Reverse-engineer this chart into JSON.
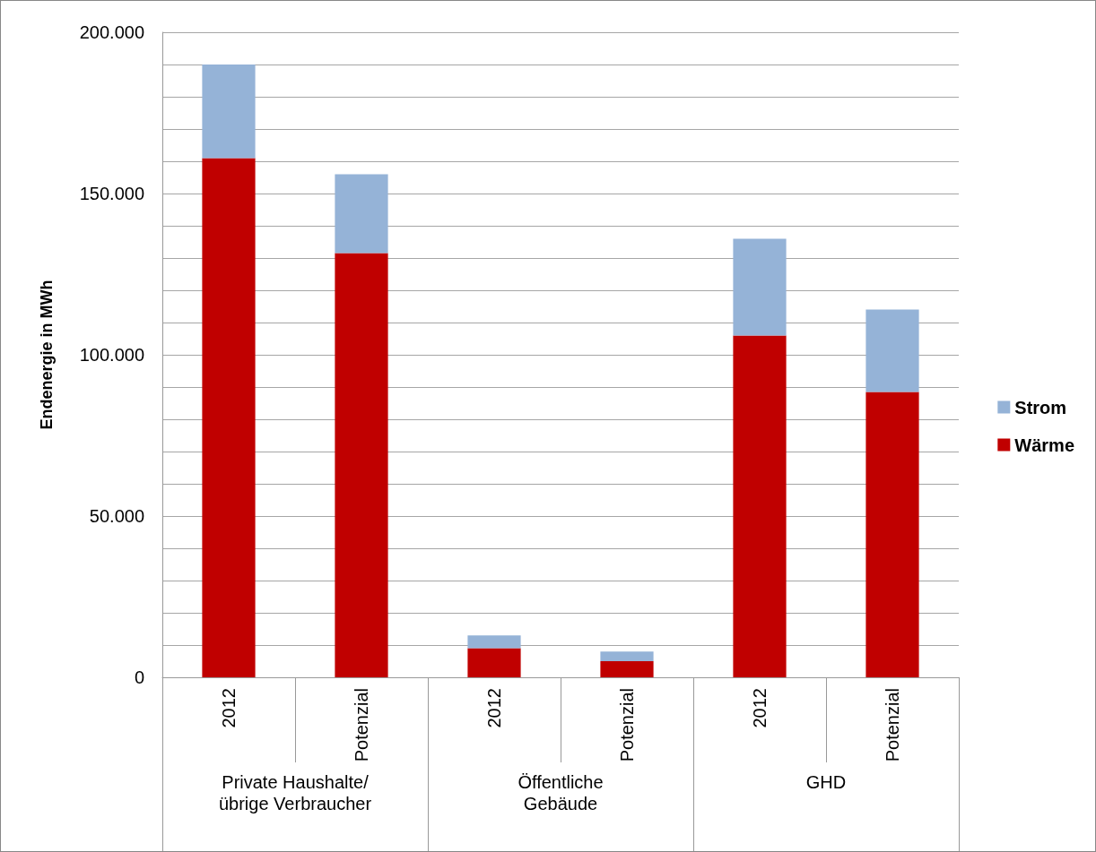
{
  "chart_data": {
    "type": "bar",
    "stacked": true,
    "ylabel": "Endenergie in MWh",
    "categories": [
      "2012",
      "Potenzial",
      "2012",
      "Potenzial",
      "2012",
      "Potenzial"
    ],
    "annotations": [
      "Private Haushalte/\nübrige Verbraucher",
      "Öffentliche\nGebäude",
      "GHD"
    ],
    "series": [
      {
        "name": "Wärme",
        "color": "#c00000",
        "values": [
          161000,
          131500,
          9000,
          5000,
          106000,
          88500
        ]
      },
      {
        "name": "Strom",
        "color": "#95b3d7",
        "values": [
          29000,
          24500,
          4000,
          3000,
          30000,
          25500
        ]
      }
    ],
    "ylim": [
      0,
      200000
    ],
    "yticks": [
      {
        "value": 0,
        "label": "0"
      },
      {
        "value": 10000,
        "label": null
      },
      {
        "value": 20000,
        "label": null
      },
      {
        "value": 30000,
        "label": null
      },
      {
        "value": 40000,
        "label": null
      },
      {
        "value": 50000,
        "label": "50.000"
      },
      {
        "value": 60000,
        "label": null
      },
      {
        "value": 70000,
        "label": null
      },
      {
        "value": 80000,
        "label": null
      },
      {
        "value": 90000,
        "label": null
      },
      {
        "value": 100000,
        "label": "100.000"
      },
      {
        "value": 110000,
        "label": null
      },
      {
        "value": 120000,
        "label": null
      },
      {
        "value": 130000,
        "label": null
      },
      {
        "value": 140000,
        "label": null
      },
      {
        "value": 150000,
        "label": "150.000"
      },
      {
        "value": 160000,
        "label": null
      },
      {
        "value": 170000,
        "label": null
      },
      {
        "value": 180000,
        "label": null
      },
      {
        "value": 190000,
        "label": null
      },
      {
        "value": 200000,
        "label": "200.000"
      }
    ],
    "grid": "y",
    "legend": "right"
  }
}
